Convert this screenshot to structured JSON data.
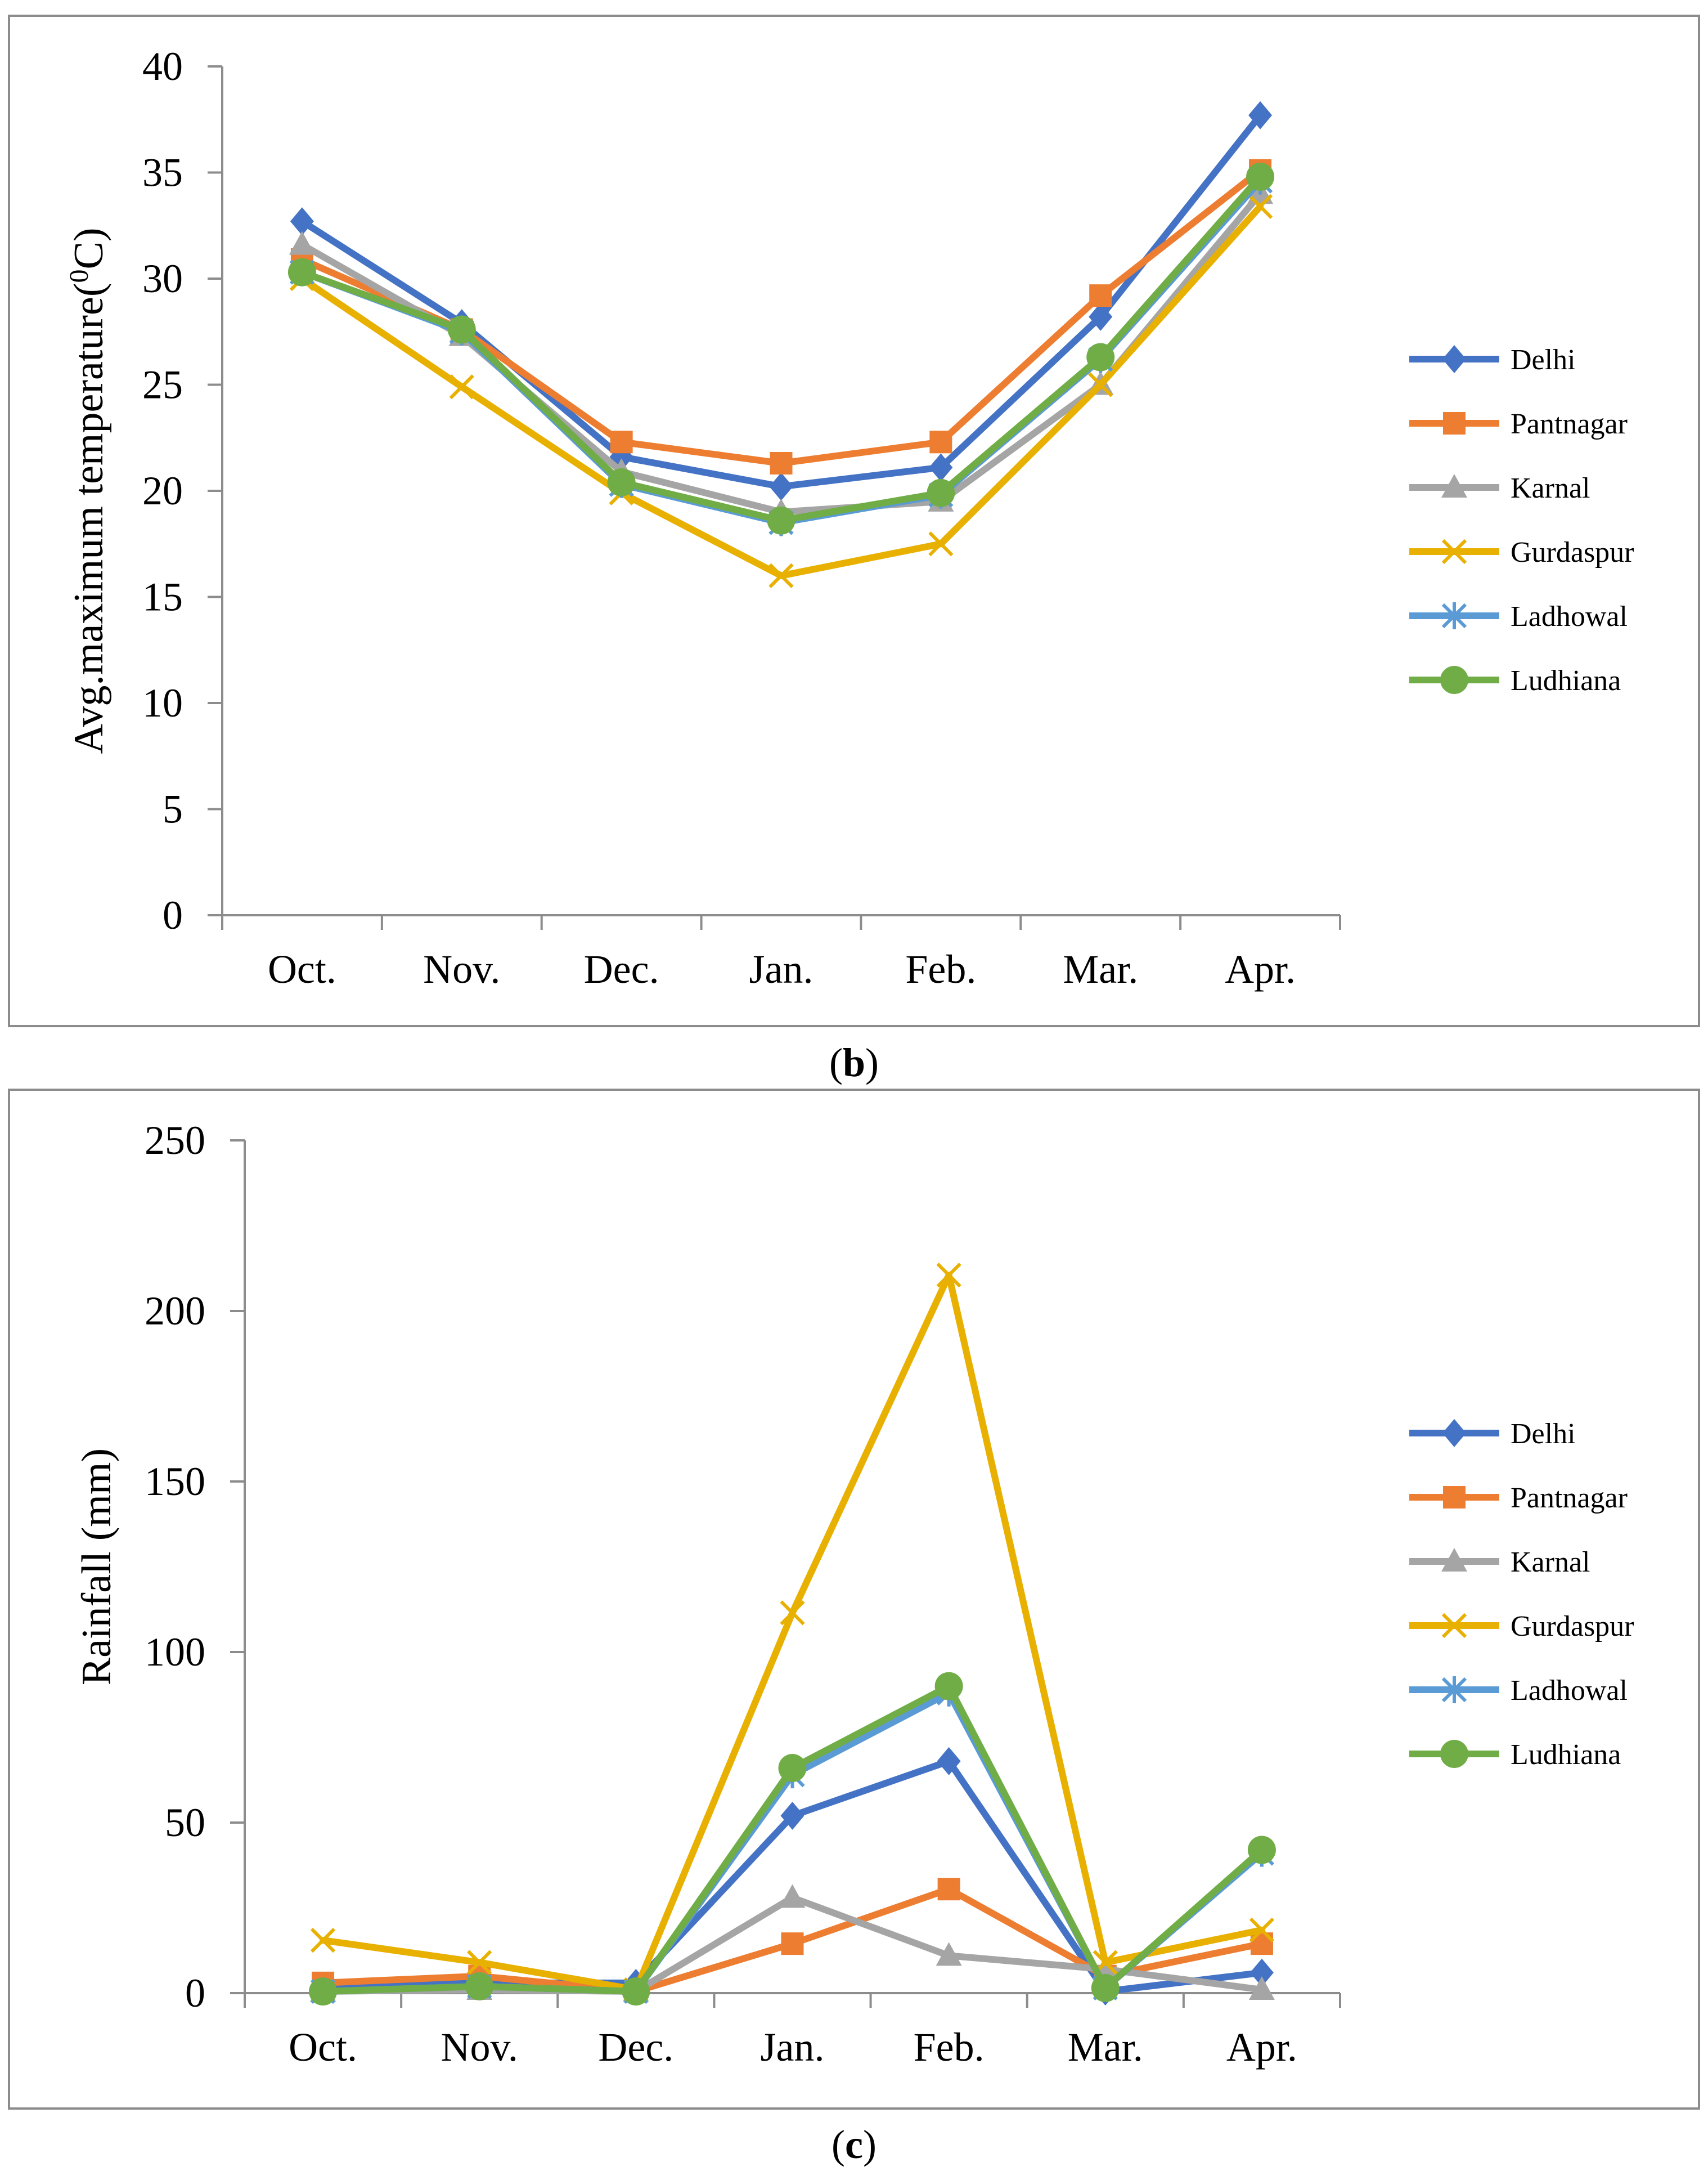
{
  "chart_data": [
    {
      "id": "b",
      "type": "line",
      "panel_label": "b",
      "title": "",
      "xlabel": "",
      "ylabel": "Avg.maximum temperature(",
      "ylabel_sup": "0",
      "ylabel_suffix": "C)",
      "categories": [
        "Oct.",
        "Nov.",
        "Dec.",
        "Jan.",
        "Feb.",
        "Mar.",
        "Apr."
      ],
      "ylim": [
        0,
        40
      ],
      "yticks": [
        0,
        5,
        10,
        15,
        20,
        25,
        30,
        35,
        40
      ],
      "grid": false,
      "legend_position": "right",
      "series": [
        {
          "name": "Delhi",
          "color": "#4472C4",
          "marker": "diamond",
          "values": [
            32.7,
            27.9,
            21.6,
            20.2,
            21.1,
            28.2,
            37.7
          ]
        },
        {
          "name": "Pantnagar",
          "color": "#ED7D31",
          "marker": "square",
          "values": [
            30.9,
            27.6,
            22.3,
            21.3,
            22.3,
            29.2,
            35.1
          ]
        },
        {
          "name": "Karnal",
          "color": "#A5A5A5",
          "marker": "triangle",
          "values": [
            31.6,
            27.3,
            20.9,
            19.0,
            19.5,
            25.0,
            34.0
          ]
        },
        {
          "name": "Gurdaspur",
          "color": "#E8B000",
          "marker": "x",
          "values": [
            30.0,
            24.9,
            19.9,
            16.0,
            17.5,
            25.0,
            33.4
          ]
        },
        {
          "name": "Ladhowal",
          "color": "#5B9BD5",
          "marker": "star",
          "values": [
            30.3,
            27.5,
            20.3,
            18.5,
            19.8,
            26.2,
            34.6
          ]
        },
        {
          "name": "Ludhiana",
          "color": "#70AD47",
          "marker": "circle",
          "values": [
            30.3,
            27.6,
            20.4,
            18.6,
            19.9,
            26.3,
            34.8
          ]
        }
      ]
    },
    {
      "id": "c",
      "type": "line",
      "panel_label": "c",
      "title": "",
      "xlabel": "",
      "ylabel": "Rainfall (mm)",
      "categories": [
        "Oct.",
        "Nov.",
        "Dec.",
        "Jan.",
        "Feb.",
        "Mar.",
        "Apr."
      ],
      "ylim": [
        0,
        250
      ],
      "yticks": [
        0,
        50,
        100,
        150,
        200,
        250
      ],
      "grid": false,
      "legend_position": "right",
      "series": [
        {
          "name": "Delhi",
          "color": "#4472C4",
          "marker": "diamond",
          "values": [
            1.5,
            3.0,
            3.0,
            52.0,
            68.0,
            0.5,
            6.0
          ]
        },
        {
          "name": "Pantnagar",
          "color": "#ED7D31",
          "marker": "square",
          "values": [
            3.0,
            5.0,
            0.5,
            14.5,
            30.5,
            5.0,
            14.5
          ]
        },
        {
          "name": "Karnal",
          "color": "#A5A5A5",
          "marker": "triangle",
          "values": [
            0.5,
            1.0,
            0.5,
            28.0,
            11.0,
            7.0,
            1.0
          ]
        },
        {
          "name": "Gurdaspur",
          "color": "#E8B000",
          "marker": "x",
          "values": [
            15.5,
            9.0,
            1.0,
            111.5,
            210.5,
            9.0,
            18.5
          ]
        },
        {
          "name": "Ladhowal",
          "color": "#5B9BD5",
          "marker": "star",
          "values": [
            0.5,
            2.0,
            0.5,
            64.0,
            88.0,
            1.5,
            41.0
          ]
        },
        {
          "name": "Ludhiana",
          "color": "#70AD47",
          "marker": "circle",
          "values": [
            0.5,
            2.0,
            0.5,
            66.0,
            90.0,
            1.5,
            42.0
          ]
        }
      ]
    }
  ]
}
